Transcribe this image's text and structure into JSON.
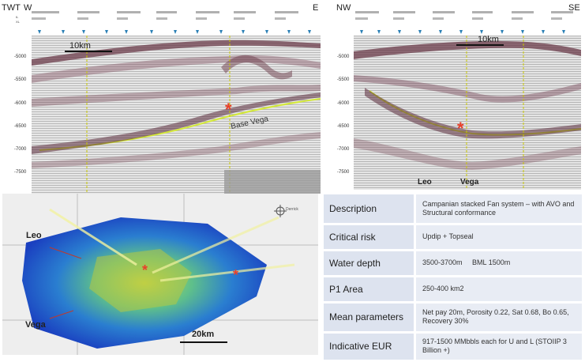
{
  "left_section": {
    "twt_label": "TWT",
    "west_label": "W",
    "east_label": "E",
    "scale_label": "10km",
    "horizon_label": "Base Vega",
    "time_ticks": [
      "-5000",
      "-5500",
      "-6000",
      "-6500",
      "-7000",
      "-7500"
    ],
    "header_row_labels": [
      "IL",
      "XL"
    ]
  },
  "right_section": {
    "nw_label": "NW",
    "se_label": "SE",
    "scale_label": "10km",
    "time_ticks": [
      "-5000",
      "-5500",
      "-6000",
      "-6500",
      "-7000",
      "-7500"
    ],
    "leo_label": "Leo",
    "vega_label": "Vega"
  },
  "map": {
    "leo_label": "Leo",
    "vega_label": "Vega",
    "scale_label": "20km",
    "north_label": "Derrick"
  },
  "table": {
    "rows": [
      {
        "key": "Description",
        "value": "Campanian stacked Fan system – with AVO and Structural conformance"
      },
      {
        "key": "Critical risk",
        "value": "Updip + Topseal"
      },
      {
        "key": "Water depth",
        "value": "3500-3700m     BML 1500m"
      },
      {
        "key": "P1 Area",
        "value": "250-400 km2"
      },
      {
        "key": "Mean parameters",
        "value": "Net pay 20m, Porosity 0.22, Sat 0.68, Bo 0.65, Recovery 30%"
      },
      {
        "key": "Indicative EUR",
        "value": "917-1500 MMbbls each for U and L (STOIIP 3 Billion +)"
      }
    ]
  },
  "colors": {
    "star": "#e8402a",
    "horizon": "#d4e83a",
    "table_key_bg": "#dde3ef",
    "table_value_bg": "#e8ecf4"
  }
}
